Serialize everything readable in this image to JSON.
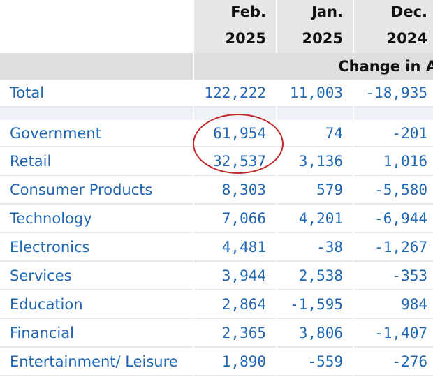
{
  "table": {
    "header_months": [
      "Feb.",
      "Jan.",
      "Dec."
    ],
    "header_years": [
      "2025",
      "2025",
      "2024"
    ],
    "change_label": "Change in A",
    "total": {
      "label": "Total",
      "values": [
        "122,222",
        "11,003",
        "-18,935"
      ]
    },
    "rows": [
      {
        "label": "Government",
        "values": [
          "61,954",
          "74",
          "-201"
        ]
      },
      {
        "label": "Retail",
        "values": [
          "32,537",
          "3,136",
          "1,016"
        ]
      },
      {
        "label": "Consumer Products",
        "values": [
          "8,303",
          "579",
          "-5,580"
        ]
      },
      {
        "label": "Technology",
        "values": [
          "7,066",
          "4,201",
          "-6,944"
        ]
      },
      {
        "label": "Electronics",
        "values": [
          "4,481",
          "-38",
          "-1,267"
        ]
      },
      {
        "label": "Services",
        "values": [
          "3,944",
          "2,538",
          "-353"
        ]
      },
      {
        "label": "Education",
        "values": [
          "2,864",
          "-1,595",
          "984"
        ]
      },
      {
        "label": "Financial",
        "values": [
          "2,365",
          "3,806",
          "-1,407"
        ]
      },
      {
        "label": "Entertainment/ Leisure",
        "values": [
          "1,890",
          "-559",
          "-276"
        ]
      }
    ]
  },
  "colors": {
    "label_text": "#1f66b3",
    "header_bg": "#e6e6e6",
    "annotation_circle": "#c0282a"
  }
}
